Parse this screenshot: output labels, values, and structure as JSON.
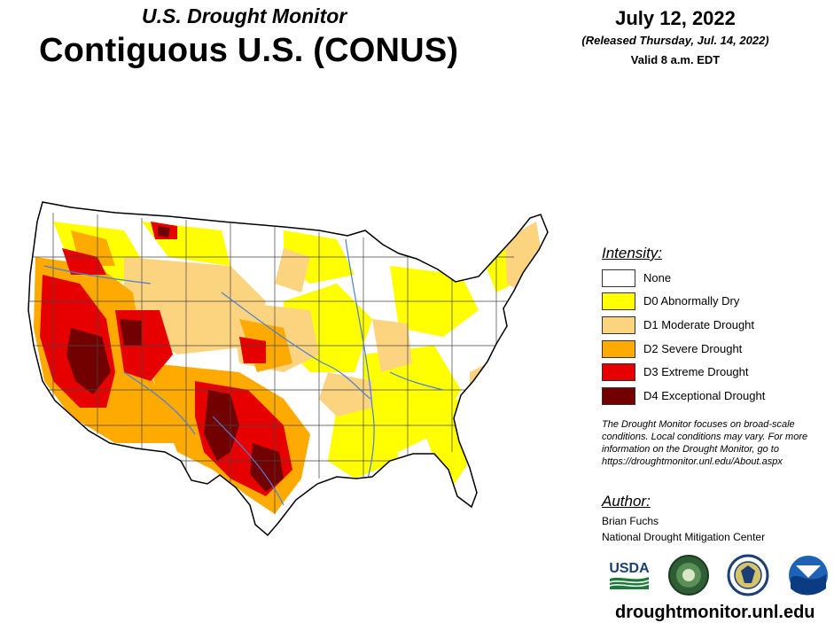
{
  "header": {
    "subtitle": "U.S. Drought Monitor",
    "title": "Contiguous U.S. (CONUS)",
    "date": "July 12, 2022",
    "released": "(Released Thursday, Jul. 14, 2022)",
    "valid": "Valid 8 a.m. EDT"
  },
  "legend": {
    "title": "Intensity:",
    "items": [
      {
        "label": "None",
        "color": "#ffffff"
      },
      {
        "label": "D0 Abnormally Dry",
        "color": "#ffff00"
      },
      {
        "label": "D1 Moderate Drought",
        "color": "#fcd37f"
      },
      {
        "label": "D2 Severe Drought",
        "color": "#ffaa00"
      },
      {
        "label": "D3 Extreme Drought",
        "color": "#e60000"
      },
      {
        "label": "D4 Exceptional Drought",
        "color": "#730000"
      }
    ]
  },
  "note": "The Drought Monitor focuses on broad-scale conditions. Local conditions may vary. For more information on the Drought Monitor, go to https://droughtmonitor.unl.edu/About.aspx",
  "author": {
    "title": "Author:",
    "name": "Brian Fuchs",
    "org": "National Drought Mitigation Center"
  },
  "logos": {
    "usda": "USDA",
    "seal_icons": [
      "ndmc-seal-icon",
      "commerce-seal-icon",
      "noaa-logo-icon"
    ]
  },
  "footer": {
    "url": "droughtmonitor.unl.edu"
  }
}
